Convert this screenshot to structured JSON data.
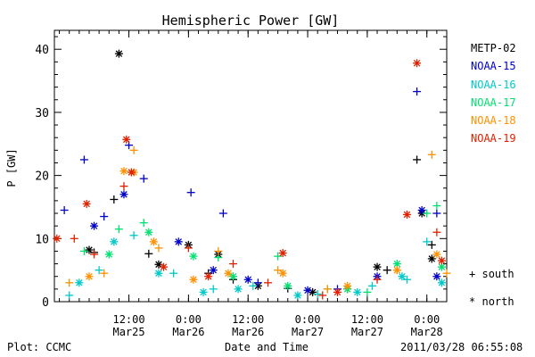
{
  "chart_data": {
    "type": "scatter",
    "title": "Hemispheric Power [GW]",
    "xlabel": "Date and Time",
    "ylabel": "P [GW]",
    "xlim": [
      "2011-03-24T21:00",
      "2011-03-28T04:00"
    ],
    "ylim": [
      0,
      43
    ],
    "yticks": [
      0,
      10,
      20,
      30,
      40
    ],
    "xticks": [
      {
        "time": "2011-03-25T12:00",
        "line1": "12:00",
        "line2": "Mar25"
      },
      {
        "time": "2011-03-26T00:00",
        "line1": "0:00",
        "line2": "Mar26"
      },
      {
        "time": "2011-03-26T12:00",
        "line1": "12:00",
        "line2": "Mar26"
      },
      {
        "time": "2011-03-27T00:00",
        "line1": "0:00",
        "line2": "Mar27"
      },
      {
        "time": "2011-03-27T12:00",
        "line1": "12:00",
        "line2": "Mar27"
      },
      {
        "time": "2011-03-28T00:00",
        "line1": "0:00",
        "line2": "Mar28"
      }
    ],
    "markers": {
      "south": "+",
      "north": "*"
    },
    "symbol_key": [
      {
        "symbol": "+",
        "label": "south"
      },
      {
        "symbol": "*",
        "label": "north"
      }
    ],
    "series": [
      {
        "name": "METP-02",
        "color": "#000000",
        "south": [
          [
            "2011-03-25T05:00",
            7.8
          ],
          [
            "2011-03-25T09:00",
            16.2
          ],
          [
            "2011-03-25T16:00",
            7.6
          ],
          [
            "2011-03-26T04:00",
            4.5
          ],
          [
            "2011-03-26T09:00",
            3.5
          ],
          [
            "2011-03-26T20:00",
            2.1
          ],
          [
            "2011-03-27T08:00",
            2.0
          ],
          [
            "2011-03-27T16:00",
            5.0
          ],
          [
            "2011-03-27T22:00",
            22.5
          ],
          [
            "2011-03-28T01:00",
            9.0
          ]
        ],
        "north": [
          [
            "2011-03-25T04:00",
            8.2
          ],
          [
            "2011-03-25T10:00",
            39.3
          ],
          [
            "2011-03-25T18:00",
            5.9
          ],
          [
            "2011-03-26T00:00",
            9.0
          ],
          [
            "2011-03-26T06:00",
            7.5
          ],
          [
            "2011-03-26T14:00",
            2.5
          ],
          [
            "2011-03-27T01:00",
            1.5
          ],
          [
            "2011-03-27T14:00",
            5.5
          ],
          [
            "2011-03-27T23:00",
            14.0
          ],
          [
            "2011-03-28T01:00",
            6.8
          ]
        ]
      },
      {
        "name": "NOAA-15",
        "color": "#0000c8",
        "south": [
          [
            "2011-03-24T23:00",
            14.5
          ],
          [
            "2011-03-25T03:00",
            22.5
          ],
          [
            "2011-03-25T07:00",
            13.5
          ],
          [
            "2011-03-25T12:00",
            24.8
          ],
          [
            "2011-03-25T15:00",
            19.5
          ],
          [
            "2011-03-26T00:30",
            17.3
          ],
          [
            "2011-03-26T07:00",
            14.0
          ],
          [
            "2011-03-26T14:00",
            3.0
          ],
          [
            "2011-03-27T06:00",
            2.0
          ],
          [
            "2011-03-27T22:00",
            33.3
          ],
          [
            "2011-03-28T02:00",
            14.0
          ]
        ],
        "north": [
          [
            "2011-03-25T05:00",
            12.0
          ],
          [
            "2011-03-25T11:00",
            17.0
          ],
          [
            "2011-03-25T22:00",
            9.5
          ],
          [
            "2011-03-26T05:00",
            5.0
          ],
          [
            "2011-03-26T12:00",
            3.5
          ],
          [
            "2011-03-27T00:00",
            1.8
          ],
          [
            "2011-03-27T14:00",
            4.0
          ],
          [
            "2011-03-27T23:00",
            14.5
          ],
          [
            "2011-03-28T02:00",
            4.0
          ]
        ]
      },
      {
        "name": "NOAA-16",
        "color": "#00c8c8",
        "south": [
          [
            "2011-03-25T00:00",
            1.0
          ],
          [
            "2011-03-25T06:00",
            5.0
          ],
          [
            "2011-03-25T13:00",
            10.5
          ],
          [
            "2011-03-25T21:00",
            4.5
          ],
          [
            "2011-03-26T05:00",
            2.0
          ],
          [
            "2011-03-26T13:00",
            2.5
          ],
          [
            "2011-03-27T02:00",
            1.2
          ],
          [
            "2011-03-27T13:00",
            2.5
          ],
          [
            "2011-03-27T20:00",
            3.5
          ],
          [
            "2011-03-28T00:00",
            9.5
          ]
        ],
        "north": [
          [
            "2011-03-25T02:00",
            3.0
          ],
          [
            "2011-03-25T09:00",
            9.5
          ],
          [
            "2011-03-25T18:00",
            4.5
          ],
          [
            "2011-03-26T03:00",
            1.5
          ],
          [
            "2011-03-26T10:00",
            2.0
          ],
          [
            "2011-03-26T22:00",
            1.0
          ],
          [
            "2011-03-27T10:00",
            1.5
          ],
          [
            "2011-03-27T19:00",
            4.0
          ],
          [
            "2011-03-28T03:00",
            3.0
          ]
        ]
      },
      {
        "name": "NOAA-17",
        "color": "#00e070",
        "south": [
          [
            "2011-03-25T03:00",
            8.0
          ],
          [
            "2011-03-25T10:00",
            11.5
          ],
          [
            "2011-03-25T15:00",
            12.5
          ],
          [
            "2011-03-26T06:00",
            7.0
          ],
          [
            "2011-03-26T18:00",
            7.2
          ],
          [
            "2011-03-27T04:00",
            2.0
          ],
          [
            "2011-03-27T12:00",
            1.5
          ],
          [
            "2011-03-28T00:00",
            14.0
          ],
          [
            "2011-03-28T02:00",
            15.2
          ]
        ],
        "north": [
          [
            "2011-03-25T08:00",
            7.5
          ],
          [
            "2011-03-25T16:00",
            11.0
          ],
          [
            "2011-03-26T01:00",
            7.2
          ],
          [
            "2011-03-26T09:00",
            4.0
          ],
          [
            "2011-03-26T20:00",
            2.5
          ],
          [
            "2011-03-27T08:00",
            2.0
          ],
          [
            "2011-03-27T18:00",
            6.0
          ],
          [
            "2011-03-28T03:00",
            5.5
          ]
        ]
      },
      {
        "name": "NOAA-18",
        "color": "#ff9000",
        "south": [
          [
            "2011-03-25T00:00",
            3.0
          ],
          [
            "2011-03-25T07:00",
            4.5
          ],
          [
            "2011-03-25T13:00",
            24.0
          ],
          [
            "2011-03-25T18:00",
            8.5
          ],
          [
            "2011-03-26T06:00",
            8.0
          ],
          [
            "2011-03-26T18:00",
            5.0
          ],
          [
            "2011-03-27T04:00",
            2.0
          ],
          [
            "2011-03-27T18:00",
            5.0
          ],
          [
            "2011-03-28T01:00",
            23.3
          ],
          [
            "2011-03-28T04:00",
            4.5
          ]
        ],
        "north": [
          [
            "2011-03-25T04:00",
            4.0
          ],
          [
            "2011-03-25T11:00",
            20.7
          ],
          [
            "2011-03-25T13:00",
            20.5
          ],
          [
            "2011-03-25T17:00",
            9.5
          ],
          [
            "2011-03-26T01:00",
            3.5
          ],
          [
            "2011-03-26T08:00",
            4.5
          ],
          [
            "2011-03-26T19:00",
            4.5
          ],
          [
            "2011-03-27T08:00",
            2.5
          ],
          [
            "2011-03-27T18:00",
            5.0
          ],
          [
            "2011-03-28T02:00",
            7.5
          ]
        ]
      },
      {
        "name": "NOAA-19",
        "color": "#e02000",
        "south": [
          [
            "2011-03-25T01:00",
            10.0
          ],
          [
            "2011-03-25T05:00",
            7.5
          ],
          [
            "2011-03-25T11:00",
            18.3
          ],
          [
            "2011-03-26T00:00",
            8.5
          ],
          [
            "2011-03-26T09:00",
            6.0
          ],
          [
            "2011-03-26T16:00",
            3.0
          ],
          [
            "2011-03-27T03:00",
            1.0
          ],
          [
            "2011-03-27T14:00",
            3.5
          ],
          [
            "2011-03-28T02:00",
            11.0
          ]
        ],
        "north": [
          [
            "2011-03-24T21:30",
            10.0
          ],
          [
            "2011-03-25T03:30",
            15.5
          ],
          [
            "2011-03-25T11:30",
            25.7
          ],
          [
            "2011-03-25T12:30",
            20.5
          ],
          [
            "2011-03-25T19:00",
            5.5
          ],
          [
            "2011-03-26T04:00",
            4.0
          ],
          [
            "2011-03-26T19:00",
            7.7
          ],
          [
            "2011-03-27T06:00",
            1.5
          ],
          [
            "2011-03-27T20:00",
            13.8
          ],
          [
            "2011-03-27T22:00",
            37.8
          ],
          [
            "2011-03-28T03:00",
            6.5
          ]
        ]
      }
    ]
  },
  "footer": {
    "left": "Plot: CCMC",
    "center": "Date and Time",
    "right": "2011/03/28 06:55:08"
  }
}
